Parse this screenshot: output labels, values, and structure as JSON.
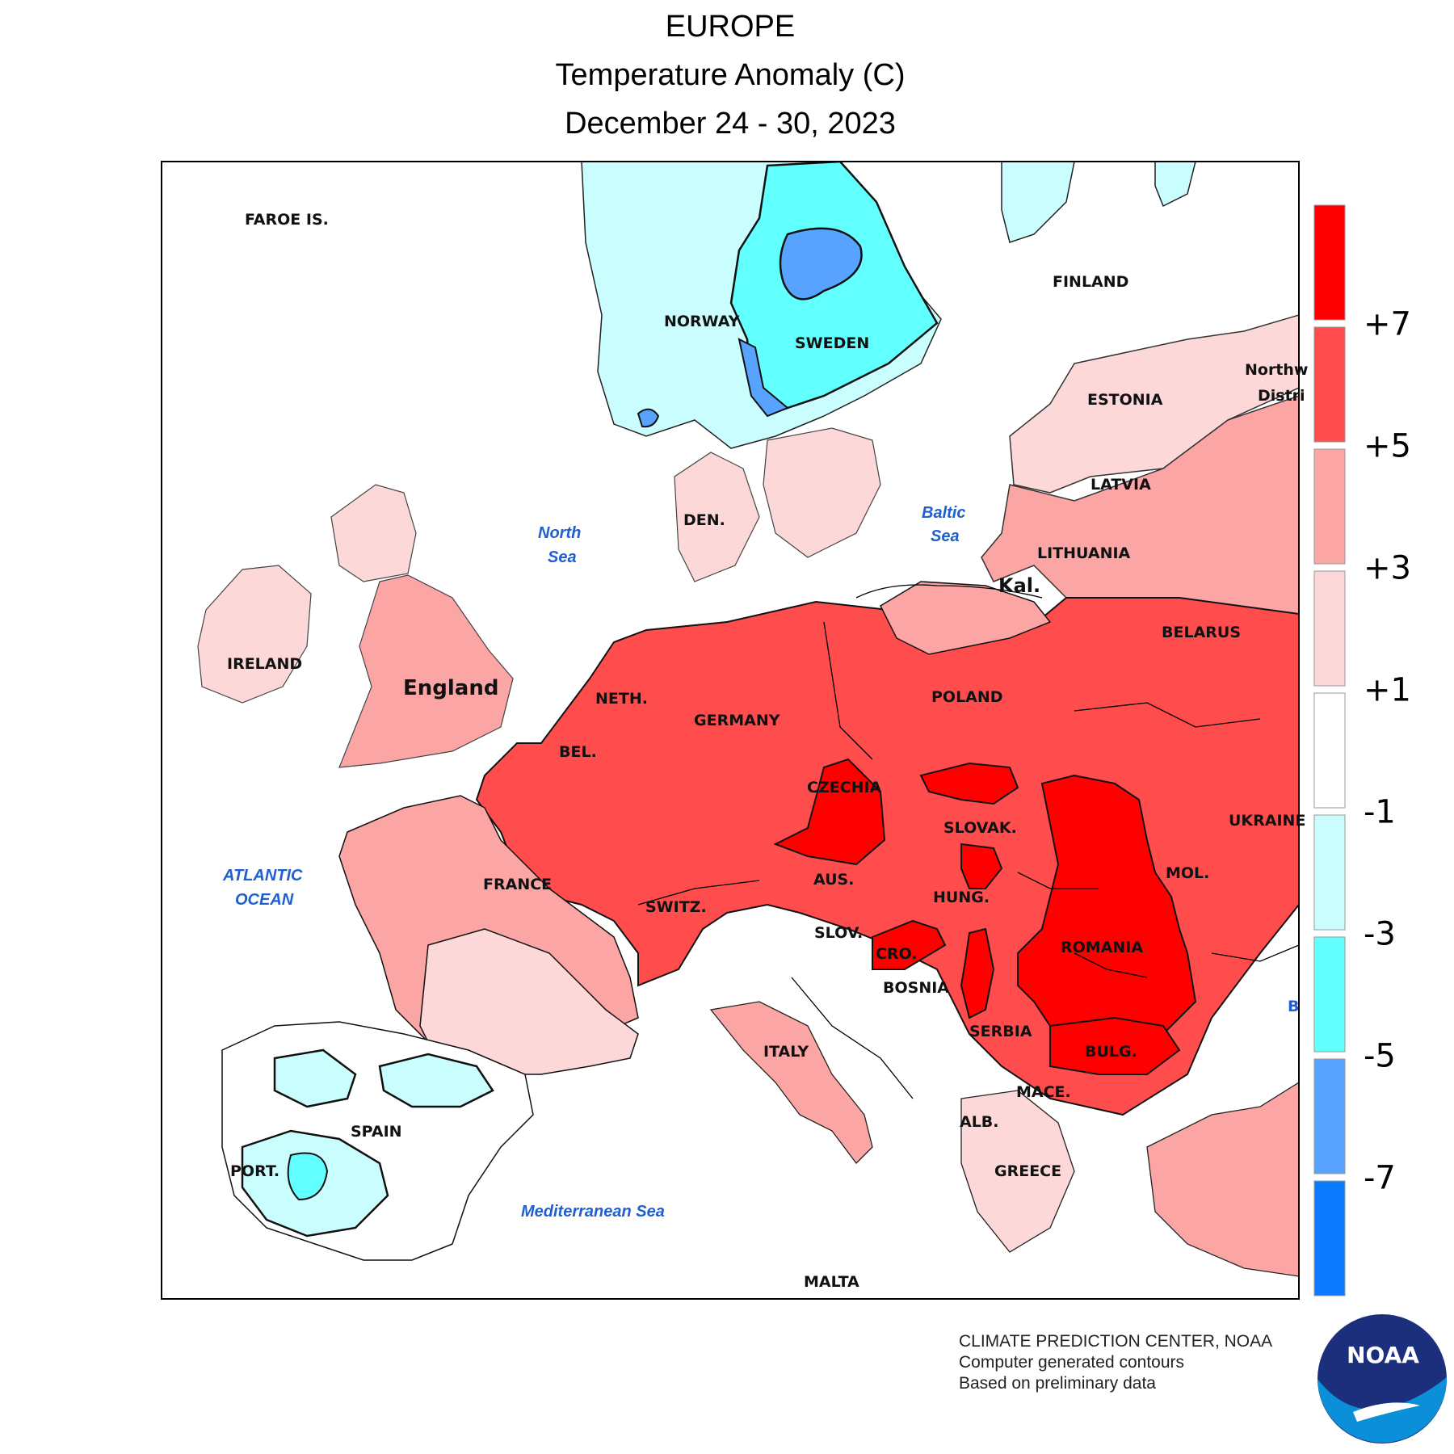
{
  "title": {
    "line1": "EUROPE",
    "line2": "Temperature Anomaly (C)",
    "line3": "December 24 - 30, 2023"
  },
  "legend": {
    "bins": [
      {
        "color": "#ff0000",
        "range": ">7"
      },
      {
        "color": "#ff4c4c",
        "range": "5 to 7"
      },
      {
        "color": "#fba5a5",
        "range": "3 to 5"
      },
      {
        "color": "#fcd8d8",
        "range": "1 to 3"
      },
      {
        "color": "#ffffff",
        "range": "-1 to 1"
      },
      {
        "color": "#cafefe",
        "range": "-3 to -1"
      },
      {
        "color": "#62ffff",
        "range": "-5 to -3"
      },
      {
        "color": "#57a3ff",
        "range": "-7 to -5"
      },
      {
        "color": "#0b7aff",
        "range": "<-7"
      }
    ],
    "ticks": [
      "+7",
      "+5",
      "+3",
      "+1",
      "-1",
      "-3",
      "-5",
      "-7"
    ]
  },
  "labels": {
    "faroe": "FAROE IS.",
    "norway": "NORWAY",
    "sweden": "SWEDEN",
    "finland": "FINLAND",
    "estonia": "ESTONIA",
    "latvia": "LATVIA",
    "lithuania": "LITHUANIA",
    "northwest1": "Northw",
    "northwest2": "Distri",
    "kal": "Kal.",
    "belarus": "BELARUS",
    "poland": "POLAND",
    "ukraine": "UKRAINE",
    "den": "DEN.",
    "ireland": "IRELAND",
    "england": "England",
    "neth": "NETH.",
    "germany": "GERMANY",
    "bel": "BEL.",
    "czechia": "CZECHIA",
    "slovak": "SLOVAK.",
    "aus": "AUS.",
    "hung": "HUNG.",
    "mol": "MOL.",
    "france": "FRANCE",
    "switz": "SWITZ.",
    "slov": "SLOV.",
    "cro": "CRO.",
    "bosnia": "BOSNIA",
    "romania": "ROMANIA",
    "serbia": "SERBIA",
    "bulg": "BULG.",
    "italy": "ITALY",
    "mace": "MACE.",
    "alb": "ALB.",
    "greece": "GREECE",
    "spain": "SPAIN",
    "port": "PORT.",
    "malta": "MALTA",
    "b": "B"
  },
  "seas": {
    "north1": "North",
    "north2": "Sea",
    "baltic1": "Baltic",
    "baltic2": "Sea",
    "atlantic1": "ATLANTIC",
    "atlantic2": "OCEAN",
    "med": "Mediterranean Sea"
  },
  "credits": {
    "line1": "CLIMATE PREDICTION CENTER, NOAA",
    "line2": "Computer generated contours",
    "line3": "Based on preliminary data"
  },
  "logo": {
    "text": "NOAA",
    "colors": {
      "navy": "#1b2f7d",
      "sky": "#0a8fd8"
    }
  }
}
